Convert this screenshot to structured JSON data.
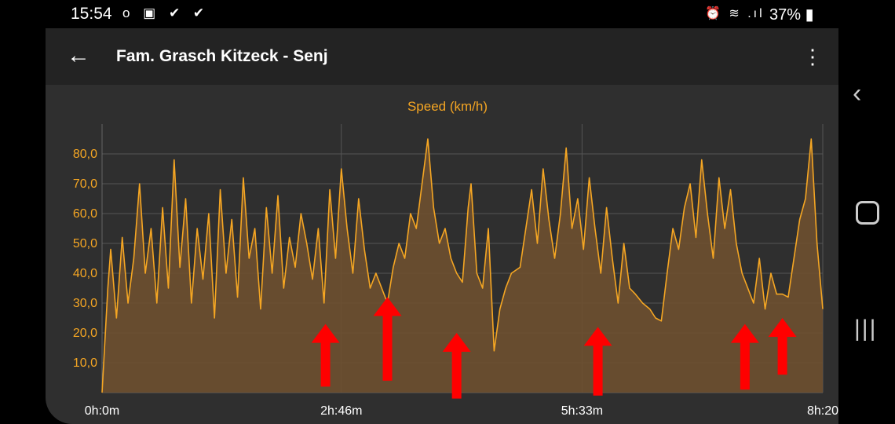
{
  "status": {
    "time": "15:54",
    "left_icons": "o ▣ ✔ ✔",
    "right_icons": "⏰ ≋ .ıl",
    "battery": "37%"
  },
  "toolbar": {
    "back_label": "←",
    "title": "Fam. Grasch Kitzeck - Senj",
    "menu_label": "⋮"
  },
  "colors": {
    "line": "#f5a623",
    "fill": "#6e5030",
    "arrow": "#ff0000",
    "background": "#2f2f2f"
  },
  "chart_data": {
    "type": "area",
    "title": "Speed (km/h)",
    "xlabel": "",
    "ylabel": "",
    "xlim": [
      0,
      500
    ],
    "ylim": [
      0,
      90
    ],
    "y_ticks": [
      10,
      20,
      30,
      40,
      50,
      60,
      70,
      80
    ],
    "y_tick_labels": [
      "10,0",
      "20,0",
      "30,0",
      "40,0",
      "50,0",
      "60,0",
      "70,0",
      "80,0"
    ],
    "x_ticks": [
      0,
      166,
      333,
      500
    ],
    "x_tick_labels": [
      "0h:0m",
      "2h:46m",
      "5h:33m",
      "8h:20"
    ],
    "grid": true,
    "legend": "none",
    "series": [
      {
        "values_summary": "noisy speed trace, mostly 20-80 km/h with low-speed gaps (flat/linear segments)",
        "points": [
          [
            0,
            0
          ],
          [
            4,
            35
          ],
          [
            6,
            48
          ],
          [
            10,
            25
          ],
          [
            14,
            52
          ],
          [
            18,
            30
          ],
          [
            22,
            45
          ],
          [
            26,
            70
          ],
          [
            30,
            40
          ],
          [
            34,
            55
          ],
          [
            38,
            30
          ],
          [
            42,
            62
          ],
          [
            46,
            35
          ],
          [
            50,
            78
          ],
          [
            54,
            42
          ],
          [
            58,
            65
          ],
          [
            62,
            30
          ],
          [
            66,
            55
          ],
          [
            70,
            38
          ],
          [
            74,
            60
          ],
          [
            78,
            25
          ],
          [
            82,
            68
          ],
          [
            86,
            40
          ],
          [
            90,
            58
          ],
          [
            94,
            32
          ],
          [
            98,
            72
          ],
          [
            102,
            45
          ],
          [
            106,
            55
          ],
          [
            110,
            28
          ],
          [
            114,
            62
          ],
          [
            118,
            40
          ],
          [
            122,
            66
          ],
          [
            126,
            35
          ],
          [
            130,
            52
          ],
          [
            134,
            42
          ],
          [
            138,
            60
          ],
          [
            142,
            50
          ],
          [
            146,
            38
          ],
          [
            150,
            55
          ],
          [
            154,
            30
          ],
          [
            158,
            68
          ],
          [
            162,
            45
          ],
          [
            166,
            75
          ],
          [
            170,
            55
          ],
          [
            174,
            40
          ],
          [
            178,
            65
          ],
          [
            182,
            48
          ],
          [
            186,
            35
          ],
          [
            190,
            40
          ],
          [
            194,
            35
          ],
          [
            198,
            30
          ],
          [
            202,
            42
          ],
          [
            206,
            50
          ],
          [
            210,
            45
          ],
          [
            214,
            60
          ],
          [
            218,
            55
          ],
          [
            222,
            70
          ],
          [
            226,
            85
          ],
          [
            230,
            62
          ],
          [
            234,
            50
          ],
          [
            238,
            55
          ],
          [
            242,
            45
          ],
          [
            246,
            40
          ],
          [
            250,
            37
          ],
          [
            254,
            62
          ],
          [
            256,
            70
          ],
          [
            260,
            40
          ],
          [
            264,
            35
          ],
          [
            268,
            55
          ],
          [
            272,
            14
          ],
          [
            276,
            28
          ],
          [
            280,
            35
          ],
          [
            284,
            40
          ],
          [
            290,
            42
          ],
          [
            294,
            55
          ],
          [
            298,
            68
          ],
          [
            302,
            50
          ],
          [
            306,
            75
          ],
          [
            310,
            58
          ],
          [
            314,
            45
          ],
          [
            318,
            60
          ],
          [
            322,
            82
          ],
          [
            326,
            55
          ],
          [
            330,
            65
          ],
          [
            334,
            48
          ],
          [
            338,
            72
          ],
          [
            342,
            55
          ],
          [
            346,
            40
          ],
          [
            350,
            62
          ],
          [
            354,
            45
          ],
          [
            358,
            30
          ],
          [
            362,
            50
          ],
          [
            366,
            35
          ],
          [
            370,
            33
          ],
          [
            375,
            30
          ],
          [
            380,
            28
          ],
          [
            384,
            25
          ],
          [
            388,
            24
          ],
          [
            392,
            40
          ],
          [
            396,
            55
          ],
          [
            400,
            48
          ],
          [
            404,
            62
          ],
          [
            408,
            70
          ],
          [
            412,
            52
          ],
          [
            416,
            78
          ],
          [
            420,
            60
          ],
          [
            424,
            45
          ],
          [
            428,
            72
          ],
          [
            432,
            55
          ],
          [
            436,
            68
          ],
          [
            440,
            50
          ],
          [
            444,
            40
          ],
          [
            448,
            35
          ],
          [
            452,
            30
          ],
          [
            456,
            45
          ],
          [
            460,
            28
          ],
          [
            464,
            40
          ],
          [
            468,
            33
          ],
          [
            472,
            33
          ],
          [
            476,
            32
          ],
          [
            480,
            45
          ],
          [
            484,
            58
          ],
          [
            488,
            65
          ],
          [
            492,
            85
          ],
          [
            496,
            50
          ],
          [
            500,
            28
          ]
        ]
      }
    ],
    "annotations": [
      {
        "type": "arrow",
        "direction": "up",
        "x": 155,
        "y_from": 2,
        "y_to": 23
      },
      {
        "type": "arrow",
        "direction": "up",
        "x": 198,
        "y_from": 4,
        "y_to": 32
      },
      {
        "type": "arrow",
        "direction": "up",
        "x": 246,
        "y_from": -2,
        "y_to": 20
      },
      {
        "type": "arrow",
        "direction": "up",
        "x": 344,
        "y_from": -1,
        "y_to": 22
      },
      {
        "type": "arrow",
        "direction": "up",
        "x": 446,
        "y_from": 1,
        "y_to": 23
      },
      {
        "type": "arrow",
        "direction": "up",
        "x": 472,
        "y_from": 6,
        "y_to": 25
      }
    ]
  },
  "navbar": {
    "back_label": "‹",
    "recent_label": "|||"
  }
}
